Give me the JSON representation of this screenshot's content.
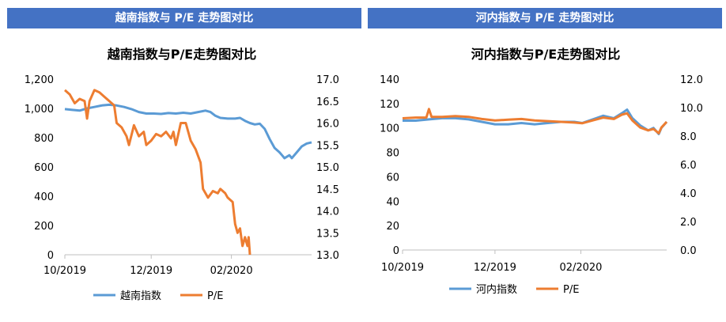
{
  "panels": [
    {
      "header": "越南指数与 P/E 走势图对比",
      "chart_data": {
        "type": "line",
        "title": "越南指数与P/E走势图对比",
        "x_ticks": [
          "10/2019",
          "12/2019",
          "02/2020"
        ],
        "x_range": [
          0,
          1
        ],
        "x_tick_pos": [
          0.0,
          0.35,
          0.675
        ],
        "y_left": {
          "min": 0,
          "max": 1200,
          "ticks": [
            0,
            200,
            400,
            600,
            800,
            "1,000",
            "1,200"
          ],
          "tick_values": [
            0,
            200,
            400,
            600,
            800,
            1000,
            1200
          ]
        },
        "y_right": {
          "min": 13.0,
          "max": 17.0,
          "ticks": [
            "13.0",
            "13.5",
            "14.0",
            "14.5",
            "15.0",
            "15.5",
            "16.0",
            "16.5",
            "17.0"
          ],
          "tick_values": [
            13.0,
            13.5,
            14.0,
            14.5,
            15.0,
            15.5,
            16.0,
            16.5,
            17.0
          ]
        },
        "series": [
          {
            "name": "越南指数",
            "axis": "left",
            "color": "#5b9bd5",
            "points": [
              [
                0.0,
                995
              ],
              [
                0.03,
                990
              ],
              [
                0.06,
                985
              ],
              [
                0.09,
                1000
              ],
              [
                0.12,
                1010
              ],
              [
                0.15,
                1020
              ],
              [
                0.18,
                1025
              ],
              [
                0.21,
                1020
              ],
              [
                0.24,
                1010
              ],
              [
                0.27,
                995
              ],
              [
                0.3,
                975
              ],
              [
                0.33,
                965
              ],
              [
                0.36,
                965
              ],
              [
                0.39,
                962
              ],
              [
                0.42,
                968
              ],
              [
                0.45,
                965
              ],
              [
                0.48,
                970
              ],
              [
                0.51,
                965
              ],
              [
                0.54,
                975
              ],
              [
                0.57,
                985
              ],
              [
                0.59,
                975
              ],
              [
                0.61,
                950
              ],
              [
                0.63,
                935
              ],
              [
                0.66,
                930
              ],
              [
                0.69,
                930
              ],
              [
                0.71,
                935
              ],
              [
                0.73,
                915
              ],
              [
                0.75,
                900
              ],
              [
                0.77,
                890
              ],
              [
                0.79,
                895
              ],
              [
                0.81,
                860
              ],
              [
                0.83,
                790
              ],
              [
                0.85,
                730
              ],
              [
                0.87,
                700
              ],
              [
                0.88,
                680
              ],
              [
                0.89,
                660
              ],
              [
                0.91,
                680
              ],
              [
                0.92,
                660
              ],
              [
                0.94,
                700
              ],
              [
                0.96,
                740
              ],
              [
                0.98,
                760
              ],
              [
                1.0,
                768
              ]
            ]
          },
          {
            "name": "P/E",
            "axis": "right",
            "color": "#ed7d31",
            "points": [
              [
                0.0,
                16.75
              ],
              [
                0.02,
                16.65
              ],
              [
                0.04,
                16.45
              ],
              [
                0.06,
                16.55
              ],
              [
                0.08,
                16.5
              ],
              [
                0.09,
                16.1
              ],
              [
                0.1,
                16.5
              ],
              [
                0.12,
                16.75
              ],
              [
                0.14,
                16.7
              ],
              [
                0.16,
                16.6
              ],
              [
                0.18,
                16.5
              ],
              [
                0.2,
                16.4
              ],
              [
                0.21,
                16.0
              ],
              [
                0.23,
                15.9
              ],
              [
                0.25,
                15.7
              ],
              [
                0.26,
                15.5
              ],
              [
                0.28,
                15.95
              ],
              [
                0.3,
                15.7
              ],
              [
                0.32,
                15.8
              ],
              [
                0.33,
                15.5
              ],
              [
                0.35,
                15.6
              ],
              [
                0.37,
                15.75
              ],
              [
                0.39,
                15.7
              ],
              [
                0.41,
                15.8
              ],
              [
                0.43,
                15.65
              ],
              [
                0.44,
                15.8
              ],
              [
                0.45,
                15.5
              ],
              [
                0.47,
                16.0
              ],
              [
                0.49,
                16.0
              ],
              [
                0.5,
                15.8
              ],
              [
                0.51,
                15.6
              ],
              [
                0.53,
                15.4
              ],
              [
                0.55,
                15.1
              ],
              [
                0.56,
                14.5
              ],
              [
                0.58,
                14.3
              ],
              [
                0.6,
                14.45
              ],
              [
                0.62,
                14.4
              ],
              [
                0.63,
                14.5
              ],
              [
                0.65,
                14.4
              ],
              [
                0.66,
                14.3
              ],
              [
                0.68,
                14.2
              ],
              [
                0.69,
                13.7
              ],
              [
                0.7,
                13.5
              ],
              [
                0.71,
                13.6
              ],
              [
                0.72,
                13.2
              ],
              [
                0.73,
                13.4
              ],
              [
                0.74,
                13.2
              ],
              [
                0.745,
                13.4
              ],
              [
                0.75,
                13.0
              ]
            ]
          }
        ]
      },
      "legend": [
        "越南指数",
        "P/E"
      ]
    },
    {
      "header": "河内指数与 P/E 走势图对比",
      "chart_data": {
        "type": "line",
        "title": "河内指数与P/E走势图对比",
        "x_ticks": [
          "10/2019",
          "12/2019",
          "02/2020"
        ],
        "x_range": [
          0,
          1
        ],
        "x_tick_pos": [
          0.0,
          0.35,
          0.675
        ],
        "y_left": {
          "min": 0,
          "max": 140,
          "ticks": [
            0,
            20,
            40,
            60,
            80,
            100,
            120,
            140
          ],
          "tick_values": [
            0,
            20,
            40,
            60,
            80,
            100,
            120,
            140
          ]
        },
        "y_right": {
          "min": 0,
          "max": 12,
          "ticks": [
            "0.0",
            "2.0",
            "4.0",
            "6.0",
            "8.0",
            "10.0",
            "12.0"
          ],
          "tick_values": [
            0,
            2,
            4,
            6,
            8,
            10,
            12
          ]
        },
        "series": [
          {
            "name": "河内指数",
            "axis": "left",
            "color": "#5b9bd5",
            "points": [
              [
                0.0,
                106
              ],
              [
                0.05,
                106
              ],
              [
                0.1,
                107
              ],
              [
                0.15,
                108
              ],
              [
                0.2,
                108
              ],
              [
                0.25,
                107
              ],
              [
                0.3,
                105
              ],
              [
                0.35,
                103
              ],
              [
                0.4,
                103
              ],
              [
                0.45,
                104
              ],
              [
                0.5,
                103
              ],
              [
                0.55,
                104
              ],
              [
                0.6,
                105
              ],
              [
                0.65,
                105
              ],
              [
                0.68,
                104
              ],
              [
                0.72,
                107
              ],
              [
                0.76,
                110
              ],
              [
                0.8,
                108
              ],
              [
                0.83,
                112
              ],
              [
                0.85,
                115
              ],
              [
                0.87,
                108
              ],
              [
                0.9,
                102
              ],
              [
                0.93,
                98
              ],
              [
                0.95,
                100
              ],
              [
                0.97,
                95
              ],
              [
                0.98,
                100
              ],
              [
                1.0,
                105
              ]
            ]
          },
          {
            "name": "P/E",
            "axis": "right",
            "color": "#ed7d31",
            "points": [
              [
                0.0,
                9.25
              ],
              [
                0.05,
                9.3
              ],
              [
                0.09,
                9.3
              ],
              [
                0.1,
                9.9
              ],
              [
                0.11,
                9.35
              ],
              [
                0.15,
                9.35
              ],
              [
                0.2,
                9.4
              ],
              [
                0.25,
                9.35
              ],
              [
                0.3,
                9.2
              ],
              [
                0.35,
                9.1
              ],
              [
                0.4,
                9.15
              ],
              [
                0.45,
                9.2
              ],
              [
                0.5,
                9.1
              ],
              [
                0.55,
                9.05
              ],
              [
                0.6,
                9.0
              ],
              [
                0.65,
                8.95
              ],
              [
                0.68,
                8.9
              ],
              [
                0.72,
                9.1
              ],
              [
                0.76,
                9.3
              ],
              [
                0.8,
                9.2
              ],
              [
                0.83,
                9.5
              ],
              [
                0.85,
                9.6
              ],
              [
                0.87,
                9.1
              ],
              [
                0.9,
                8.6
              ],
              [
                0.93,
                8.4
              ],
              [
                0.95,
                8.5
              ],
              [
                0.97,
                8.2
              ],
              [
                0.98,
                8.6
              ],
              [
                1.0,
                9.0
              ]
            ]
          }
        ]
      },
      "legend": [
        "河内指数",
        "P/E"
      ]
    }
  ]
}
